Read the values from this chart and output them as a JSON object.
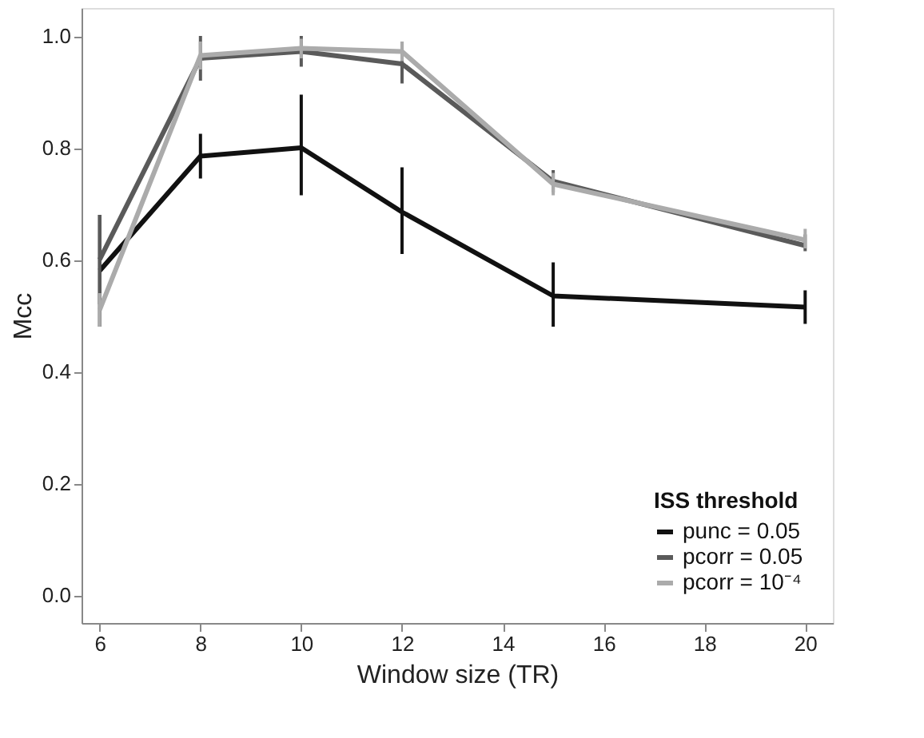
{
  "chart_data": {
    "type": "line",
    "xlabel": "Window size (TR)",
    "ylabel": "Mcc",
    "legend_title": "ISS threshold",
    "legend": "bottom right",
    "grid": false,
    "marker": "none",
    "line_style": "solid",
    "x": [
      6,
      8,
      10,
      12,
      15,
      20
    ],
    "xlim": [
      5.64,
      20.55
    ],
    "xticks": [
      6,
      8,
      10,
      12,
      14,
      16,
      18,
      20
    ],
    "ylim": [
      -0.05,
      1.05
    ],
    "yticks": [
      {
        "value": 0,
        "label": "0.0"
      },
      0.2,
      0.4,
      0.6,
      0.8,
      {
        "value": 1,
        "label": "1.0"
      }
    ],
    "series": [
      {
        "name": "punc = 0.05",
        "color": "#111111",
        "values": [
          0.58,
          0.785,
          0.8,
          0.685,
          0.535,
          0.515
        ],
        "errors": [
          [
            0.48,
            0.68
          ],
          [
            0.745,
            0.825
          ],
          [
            0.715,
            0.895
          ],
          [
            0.61,
            0.765
          ],
          [
            0.48,
            0.595
          ],
          [
            0.485,
            0.545
          ]
        ]
      },
      {
        "name": "pcorr = 0.05",
        "color": "#5a5a5a",
        "values": [
          0.6,
          0.96,
          0.972,
          0.95,
          0.74,
          0.625
        ],
        "errors": [
          [
            0.52,
            0.68
          ],
          [
            0.92,
            1.0
          ],
          [
            0.945,
            1.0
          ],
          [
            0.915,
            0.99
          ],
          [
            0.72,
            0.76
          ],
          [
            0.615,
            0.645
          ]
        ]
      },
      {
        "name": "pcorr = 10⁻⁴",
        "color": "#ababab",
        "values": [
          0.51,
          0.965,
          0.978,
          0.972,
          0.735,
          0.635
        ],
        "errors": [
          [
            0.48,
            0.54
          ],
          [
            0.94,
            0.99
          ],
          [
            0.96,
            0.995
          ],
          [
            0.955,
            0.99
          ],
          [
            0.715,
            0.755
          ],
          [
            0.62,
            0.655
          ]
        ]
      }
    ]
  }
}
